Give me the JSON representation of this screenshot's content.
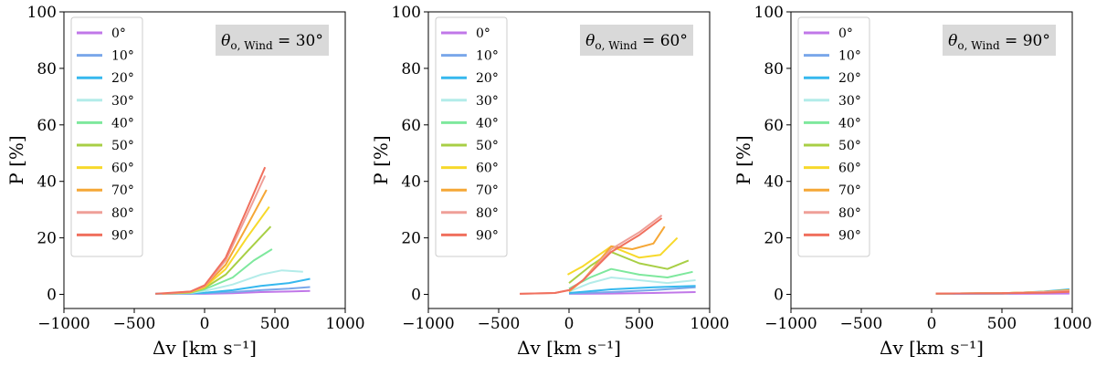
{
  "chart_data": [
    {
      "type": "line",
      "annotation": "θ",
      "annotation_sub": "o, Wind",
      "annotation_value": " = 30°",
      "xlabel": "Δv  [km s⁻¹]",
      "ylabel": "P [%]",
      "xlim": [
        -1000,
        1000
      ],
      "ylim": [
        -5,
        100
      ],
      "xticks": [
        "−1000",
        "−500",
        "0",
        "500",
        "1000"
      ],
      "yticks": [
        "0",
        "20",
        "40",
        "60",
        "80",
        "100"
      ],
      "legend_loc": "upper-left",
      "series": [
        {
          "name": "0°",
          "color": "#c077e8",
          "x": [
            -350,
            -100,
            0,
            200,
            400,
            600,
            750
          ],
          "y": [
            0.2,
            0.2,
            0.2,
            0.4,
            0.8,
            1.0,
            1.2
          ]
        },
        {
          "name": "10°",
          "color": "#7aa7ea",
          "x": [
            -350,
            -100,
            0,
            200,
            400,
            600,
            750
          ],
          "y": [
            0.2,
            0.3,
            0.4,
            0.8,
            1.5,
            2.0,
            2.6
          ]
        },
        {
          "name": "20°",
          "color": "#36b8ee",
          "x": [
            -350,
            -100,
            0,
            200,
            400,
            600,
            750
          ],
          "y": [
            0.2,
            0.4,
            0.6,
            1.5,
            3.0,
            4.0,
            5.5
          ]
        },
        {
          "name": "30°",
          "color": "#b3ece9",
          "x": [
            -350,
            -100,
            0,
            200,
            400,
            550,
            700
          ],
          "y": [
            0.2,
            0.5,
            1.2,
            3.5,
            7.0,
            8.5,
            8.0
          ]
        },
        {
          "name": "40°",
          "color": "#7ee89d",
          "x": [
            -300,
            -100,
            0,
            200,
            350,
            480
          ],
          "y": [
            0.2,
            0.6,
            1.8,
            6.0,
            12.0,
            16.0
          ]
        },
        {
          "name": "50°",
          "color": "#a8cf45",
          "x": [
            -300,
            -100,
            0,
            150,
            300,
            470
          ],
          "y": [
            0.2,
            0.7,
            2.2,
            7.0,
            15.0,
            24.0
          ]
        },
        {
          "name": "60°",
          "color": "#f7d92b",
          "x": [
            -300,
            -100,
            0,
            150,
            300,
            460
          ],
          "y": [
            0.2,
            0.8,
            2.5,
            9.0,
            20.0,
            31.0
          ]
        },
        {
          "name": "70°",
          "color": "#f5a736",
          "x": [
            -300,
            -100,
            0,
            150,
            300,
            440
          ],
          "y": [
            0.2,
            0.9,
            2.8,
            10.5,
            24.0,
            37.0
          ]
        },
        {
          "name": "80°",
          "color": "#ef9f98",
          "x": [
            -300,
            -100,
            0,
            150,
            300,
            430
          ],
          "y": [
            0.2,
            1.0,
            3.0,
            12.0,
            28.0,
            42.0
          ]
        },
        {
          "name": "90°",
          "color": "#f0705e",
          "x": [
            -350,
            -100,
            0,
            150,
            300,
            430
          ],
          "y": [
            0.2,
            1.0,
            3.2,
            13.0,
            30.0,
            45.0
          ]
        }
      ]
    },
    {
      "type": "line",
      "annotation": "θ",
      "annotation_sub": "o, Wind",
      "annotation_value": " = 60°",
      "xlabel": "Δv  [km s⁻¹]",
      "ylabel": "P [%]",
      "xlim": [
        -1000,
        1000
      ],
      "ylim": [
        -5,
        100
      ],
      "xticks": [
        "−1000",
        "−500",
        "0",
        "500",
        "1000"
      ],
      "yticks": [
        "0",
        "20",
        "40",
        "60",
        "80",
        "100"
      ],
      "legend_loc": "upper-left",
      "series": [
        {
          "name": "0°",
          "color": "#c077e8",
          "x": [
            0,
            300,
            600,
            900
          ],
          "y": [
            0.2,
            0.3,
            0.5,
            0.8
          ]
        },
        {
          "name": "10°",
          "color": "#7aa7ea",
          "x": [
            0,
            300,
            600,
            900
          ],
          "y": [
            0.3,
            0.8,
            1.5,
            2.5
          ]
        },
        {
          "name": "20°",
          "color": "#36b8ee",
          "x": [
            0,
            300,
            600,
            900
          ],
          "y": [
            0.5,
            1.8,
            2.5,
            3.0
          ]
        },
        {
          "name": "30°",
          "color": "#b3ece9",
          "x": [
            0,
            150,
            300,
            500,
            700,
            900
          ],
          "y": [
            1.0,
            4.0,
            6.0,
            5.0,
            4.0,
            5.0
          ]
        },
        {
          "name": "40°",
          "color": "#7ee89d",
          "x": [
            0,
            150,
            300,
            500,
            700,
            880
          ],
          "y": [
            2.0,
            6.0,
            9.0,
            7.0,
            6.0,
            8.0
          ]
        },
        {
          "name": "50°",
          "color": "#a8cf45",
          "x": [
            0,
            150,
            300,
            500,
            700,
            850
          ],
          "y": [
            4.0,
            10.0,
            15.0,
            11.0,
            9.0,
            12.0
          ]
        },
        {
          "name": "60°",
          "color": "#f7d92b",
          "x": [
            -10,
            100,
            300,
            500,
            650,
            770
          ],
          "y": [
            7.0,
            10.0,
            17.0,
            13.0,
            14.0,
            20.0
          ]
        },
        {
          "name": "70°",
          "color": "#f5a736",
          "x": [
            0,
            100,
            300,
            450,
            600,
            680
          ],
          "y": [
            1.0,
            5.0,
            17.0,
            16.0,
            18.0,
            24.0
          ]
        },
        {
          "name": "80°",
          "color": "#ef9f98",
          "x": [
            -350,
            -100,
            0,
            100,
            300,
            500,
            660
          ],
          "y": [
            0.2,
            0.5,
            1.5,
            5.0,
            16.0,
            22.0,
            28.0
          ]
        },
        {
          "name": "90°",
          "color": "#f0705e",
          "x": [
            -350,
            -100,
            0,
            100,
            300,
            500,
            660
          ],
          "y": [
            0.2,
            0.5,
            1.5,
            5.0,
            15.0,
            21.0,
            27.0
          ]
        }
      ]
    },
    {
      "type": "line",
      "annotation": "θ",
      "annotation_sub": "o, Wind",
      "annotation_value": " = 90°",
      "xlabel": "Δv  [km s⁻¹]",
      "ylabel": "P [%]",
      "xlim": [
        -1000,
        1000
      ],
      "ylim": [
        -5,
        100
      ],
      "xticks": [
        "−1000",
        "−500",
        "0",
        "500",
        "1000"
      ],
      "yticks": [
        "0",
        "20",
        "40",
        "60",
        "80",
        "100"
      ],
      "legend_loc": "upper-left",
      "series": [
        {
          "name": "0°",
          "color": "#c077e8",
          "x": [
            30,
            500,
            980
          ],
          "y": [
            0.2,
            0.2,
            0.3
          ]
        },
        {
          "name": "10°",
          "color": "#7aa7ea",
          "x": [
            30,
            500,
            800,
            980
          ],
          "y": [
            0.3,
            0.3,
            0.8,
            1.5
          ]
        },
        {
          "name": "20°",
          "color": "#36b8ee",
          "x": [
            30,
            500,
            800,
            980
          ],
          "y": [
            0.3,
            0.3,
            1.0,
            1.8
          ]
        },
        {
          "name": "30°",
          "color": "#b3ece9",
          "x": [
            30,
            500,
            800,
            980
          ],
          "y": [
            0.3,
            0.4,
            0.8,
            1.2
          ]
        },
        {
          "name": "40°",
          "color": "#7ee89d",
          "x": [
            30,
            500,
            800,
            980
          ],
          "y": [
            0.3,
            0.4,
            0.8,
            1.2
          ]
        },
        {
          "name": "50°",
          "color": "#a8cf45",
          "x": [
            30,
            500,
            800,
            980
          ],
          "y": [
            0.3,
            0.4,
            0.9,
            1.5
          ]
        },
        {
          "name": "60°",
          "color": "#f7d92b",
          "x": [
            30,
            500,
            800,
            980
          ],
          "y": [
            0.3,
            0.4,
            0.9,
            1.3
          ]
        },
        {
          "name": "70°",
          "color": "#f5a736",
          "x": [
            30,
            500,
            800,
            980
          ],
          "y": [
            0.3,
            0.4,
            0.9,
            1.5
          ]
        },
        {
          "name": "80°",
          "color": "#ef9f98",
          "x": [
            30,
            500,
            800,
            980
          ],
          "y": [
            0.3,
            0.4,
            0.8,
            1.2
          ]
        },
        {
          "name": "90°",
          "color": "#f0705e",
          "x": [
            30,
            500,
            800,
            980
          ],
          "y": [
            0.3,
            0.4,
            0.6,
            0.9
          ]
        }
      ]
    }
  ]
}
